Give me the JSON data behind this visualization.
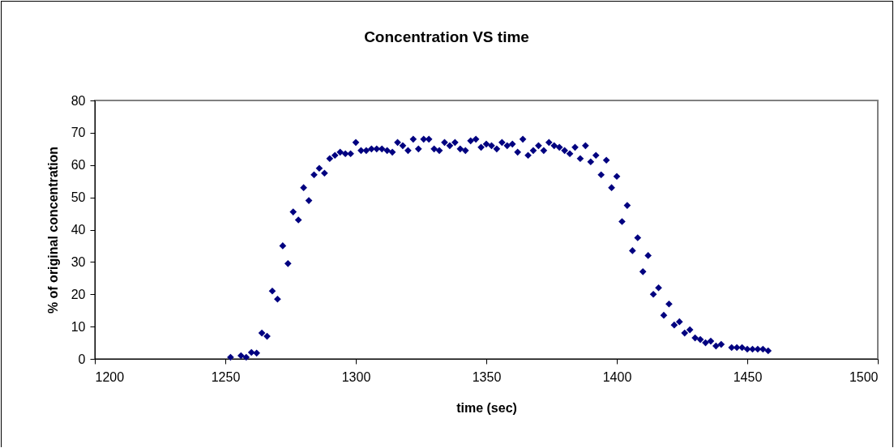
{
  "chart_data": {
    "type": "scatter",
    "title": "Concentration VS time",
    "xlabel": "time (sec)",
    "ylabel": "% of original concentration",
    "xlim": [
      1200,
      1500
    ],
    "xticks": [
      1200,
      1250,
      1300,
      1350,
      1400,
      1450,
      1500
    ],
    "ylim": [
      0,
      80
    ],
    "yticks": [
      0,
      10,
      20,
      30,
      40,
      50,
      60,
      70,
      80
    ],
    "grid": false,
    "marker": "diamond",
    "x": [
      1252,
      1256,
      1258,
      1260,
      1262,
      1264,
      1266,
      1268,
      1270,
      1272,
      1274,
      1276,
      1278,
      1280,
      1282,
      1284,
      1286,
      1288,
      1290,
      1292,
      1294,
      1296,
      1298,
      1300,
      1302,
      1304,
      1306,
      1308,
      1310,
      1312,
      1314,
      1316,
      1318,
      1320,
      1322,
      1324,
      1326,
      1328,
      1330,
      1332,
      1334,
      1336,
      1338,
      1340,
      1342,
      1344,
      1346,
      1348,
      1350,
      1352,
      1354,
      1356,
      1358,
      1360,
      1362,
      1364,
      1366,
      1368,
      1370,
      1372,
      1374,
      1376,
      1378,
      1380,
      1382,
      1384,
      1386,
      1388,
      1390,
      1392,
      1394,
      1396,
      1398,
      1400,
      1402,
      1404,
      1406,
      1408,
      1410,
      1412,
      1414,
      1416,
      1418,
      1420,
      1422,
      1424,
      1426,
      1428,
      1430,
      1432,
      1434,
      1436,
      1438,
      1440,
      1444,
      1446,
      1448,
      1450,
      1452,
      1454,
      1456,
      1458
    ],
    "series": [
      {
        "color": "#000080",
        "values": [
          0.5,
          1,
          0.5,
          2,
          1.8,
          8,
          7,
          21,
          18.5,
          35,
          29.5,
          45.5,
          43,
          53,
          49,
          57,
          59,
          57.5,
          62,
          63,
          64,
          63.5,
          63.5,
          67,
          64.5,
          64.5,
          65,
          65,
          65,
          64.5,
          64,
          67,
          66,
          64.5,
          68,
          65,
          68,
          68,
          65,
          64.5,
          67,
          66,
          67,
          65,
          64.5,
          67.5,
          68,
          65.5,
          66.5,
          66,
          65,
          67,
          66,
          66.5,
          64,
          68,
          63,
          64.5,
          66,
          64.5,
          67,
          66,
          65.5,
          64.5,
          63.5,
          65.5,
          62,
          66,
          61,
          63,
          57,
          61.5,
          53,
          56.5,
          42.5,
          47.5,
          33.5,
          37.5,
          27,
          32,
          20,
          22,
          13.5,
          17,
          10.5,
          11.5,
          8,
          9,
          6.5,
          6,
          5,
          5.5,
          4,
          4.5,
          3.5,
          3.5,
          3.5,
          3,
          3,
          3,
          3,
          2.5
        ]
      }
    ]
  }
}
